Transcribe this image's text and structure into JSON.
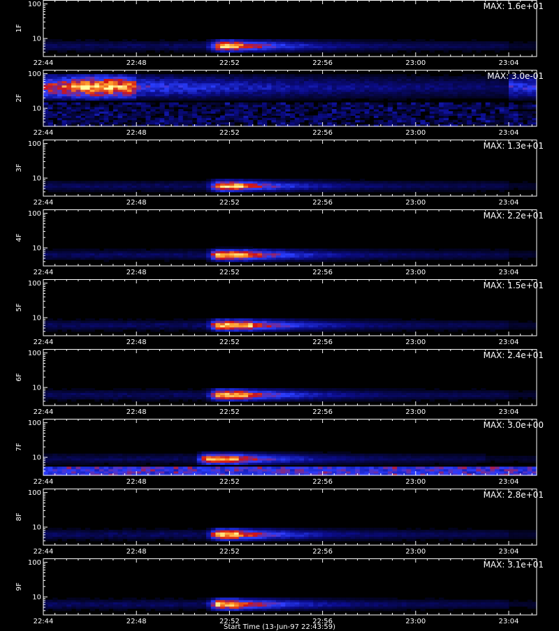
{
  "chart_data": {
    "type": "heatmap",
    "xlabel": "Start Time (13-Jun-97 22:43:59)",
    "x_ticks": [
      "22:44",
      "22:48",
      "22:52",
      "22:56",
      "23:00",
      "23:04"
    ],
    "x_tick_minutes": [
      0,
      4,
      8,
      12,
      16,
      20
    ],
    "x_range_minutes": [
      0,
      21.2
    ],
    "y_scale": "log",
    "y_range": [
      3,
      130
    ],
    "y_ticks": [
      10,
      100
    ],
    "y_tick_labels": [
      "10",
      "100"
    ],
    "colormap": [
      "#000000",
      "#0b0c8a",
      "#2a3dff",
      "#d21414",
      "#ff9a2a",
      "#ffffa0"
    ],
    "panels": [
      {
        "name": "1F",
        "max_label": "MAX: 1.6e+01",
        "max_value": 16,
        "event": {
          "start_min": 7.0,
          "peak_min": 7.6,
          "peak_end_min": 8.5,
          "decay_end_min": 20.0,
          "y_low": 4.5,
          "y_high": 8.5,
          "intensity": 1.0
        }
      },
      {
        "name": "2F",
        "max_label": "MAX: 3.0e-01",
        "max_value": 0.3,
        "event": {
          "band_start_min": 0,
          "band_peak_min": 2.5,
          "band_end_min": 21.0,
          "y_low": 25,
          "y_high": 70,
          "intensity": 0.8
        }
      },
      {
        "name": "3F",
        "max_label": "MAX: 1.3e+01",
        "max_value": 13,
        "event": {
          "start_min": 7.0,
          "peak_min": 7.6,
          "peak_end_min": 8.6,
          "decay_end_min": 20.0,
          "y_low": 4.5,
          "y_high": 8.0,
          "intensity": 0.95
        }
      },
      {
        "name": "4F",
        "max_label": "MAX: 2.2e+01",
        "max_value": 22,
        "event": {
          "start_min": 7.0,
          "peak_min": 7.5,
          "peak_end_min": 8.8,
          "decay_end_min": 20.0,
          "y_low": 4.5,
          "y_high": 9.0,
          "intensity": 1.0
        }
      },
      {
        "name": "5F",
        "max_label": "MAX: 1.5e+01",
        "max_value": 15,
        "event": {
          "start_min": 7.0,
          "peak_min": 7.5,
          "peak_end_min": 9.0,
          "decay_end_min": 20.0,
          "y_low": 4.0,
          "y_high": 9.5,
          "intensity": 1.0
        }
      },
      {
        "name": "6F",
        "max_label": "MAX: 2.4e+01",
        "max_value": 24,
        "event": {
          "start_min": 7.0,
          "peak_min": 7.5,
          "peak_end_min": 8.8,
          "decay_end_min": 20.0,
          "y_low": 4.5,
          "y_high": 8.5,
          "intensity": 1.0
        }
      },
      {
        "name": "7F",
        "max_label": "MAX: 3.0e+00",
        "max_value": 3.0,
        "event": {
          "start_min": 6.5,
          "peak_min": 7.0,
          "peak_end_min": 8.5,
          "decay_end_min": 19.0,
          "y_low": 7.0,
          "y_high": 12.0,
          "intensity": 0.9
        }
      },
      {
        "name": "8F",
        "max_label": "MAX: 2.8e+01",
        "max_value": 28,
        "event": {
          "start_min": 7.0,
          "peak_min": 7.5,
          "peak_end_min": 8.5,
          "decay_end_min": 20.0,
          "y_low": 4.5,
          "y_high": 8.5,
          "intensity": 1.0
        }
      },
      {
        "name": "9F",
        "max_label": "MAX: 3.1e+01",
        "max_value": 31,
        "event": {
          "start_min": 7.0,
          "peak_min": 7.5,
          "peak_end_min": 8.5,
          "decay_end_min": 20.0,
          "y_low": 4.5,
          "y_high": 8.5,
          "intensity": 1.0
        }
      }
    ]
  }
}
